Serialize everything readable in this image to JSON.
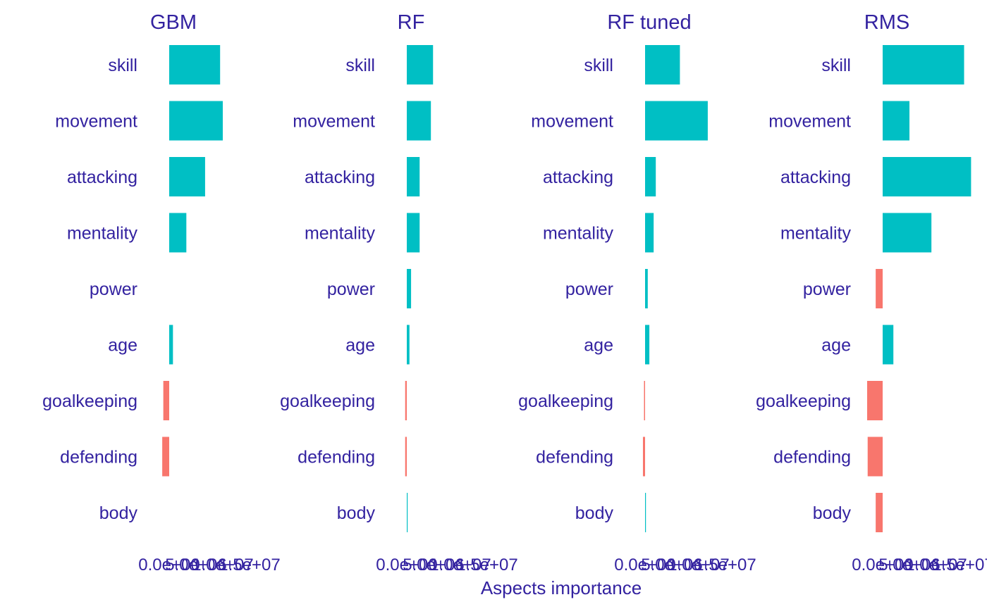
{
  "chart_data": {
    "type": "bar",
    "orientation": "horizontal",
    "xlabel": "Aspects importance",
    "categories": [
      "skill",
      "movement",
      "attacking",
      "mentality",
      "power",
      "age",
      "goalkeeping",
      "defending",
      "body"
    ],
    "xlim": [
      -3000000,
      16000000
    ],
    "x_tick_labels": [
      "0.0e+00",
      "5.0e+06",
      "1.0e+07",
      "1.5e+07"
    ],
    "text_color": "#3322a0",
    "positive_color": "#00bfc4",
    "negative_color": "#f8766d",
    "panels": [
      {
        "title": "GBM",
        "values": [
          9500000,
          10000000,
          6700000,
          3200000,
          0,
          700000,
          -1100000,
          -1300000,
          0
        ]
      },
      {
        "title": "RF",
        "values": [
          4900000,
          4500000,
          2400000,
          2400000,
          800000,
          500000,
          -300000,
          -300000,
          100000
        ]
      },
      {
        "title": "RF tuned",
        "values": [
          6500000,
          11700000,
          2000000,
          1600000,
          500000,
          800000,
          -200000,
          -400000,
          100000
        ]
      },
      {
        "title": "RMS",
        "values": [
          15200000,
          5000000,
          16500000,
          9100000,
          -1300000,
          2000000,
          -2900000,
          -2800000,
          -1300000
        ]
      }
    ]
  }
}
